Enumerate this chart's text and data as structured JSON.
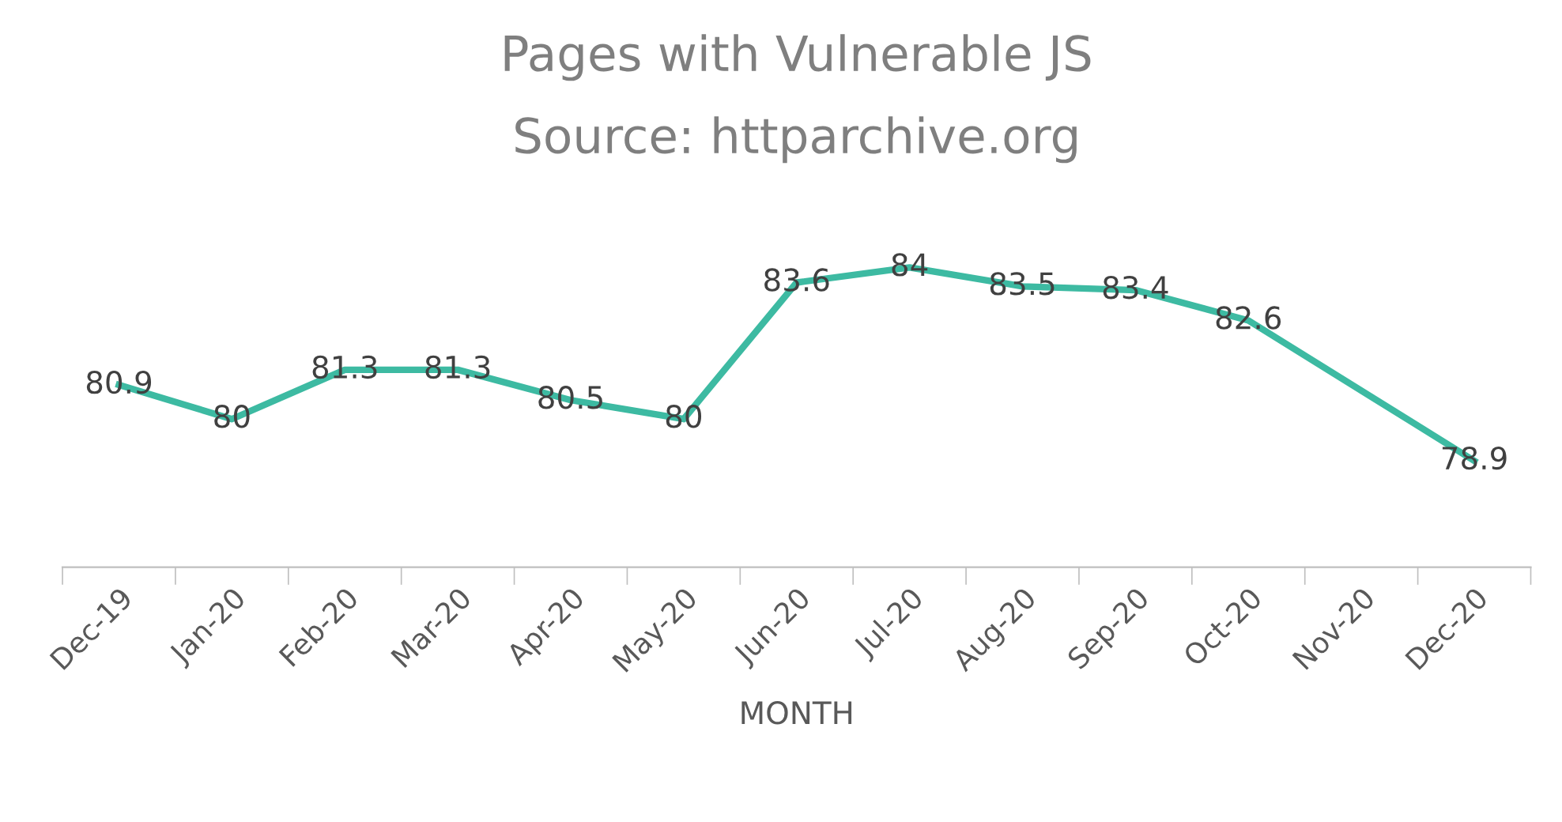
{
  "chart_data": {
    "type": "line",
    "title": "Pages with Vulnerable JS",
    "subtitle": "Source: httparchive.org",
    "xlabel": "MONTH",
    "categories": [
      "Dec-19",
      "Jan-20",
      "Feb-20",
      "Mar-20",
      "Apr-20",
      "May-20",
      "Jun-20",
      "Jul-20",
      "Aug-20",
      "Sep-20",
      "Oct-20",
      "Nov-20",
      "Dec-20"
    ],
    "series": [
      {
        "color": "#3dbaa2",
        "values": [
          80.9,
          80,
          81.3,
          81.3,
          80.5,
          80,
          83.6,
          84,
          83.5,
          83.4,
          82.6,
          null,
          78.9
        ]
      }
    ],
    "data_labels": true,
    "marker": "none",
    "line_style": "solid",
    "grid": false,
    "legend": false
  }
}
